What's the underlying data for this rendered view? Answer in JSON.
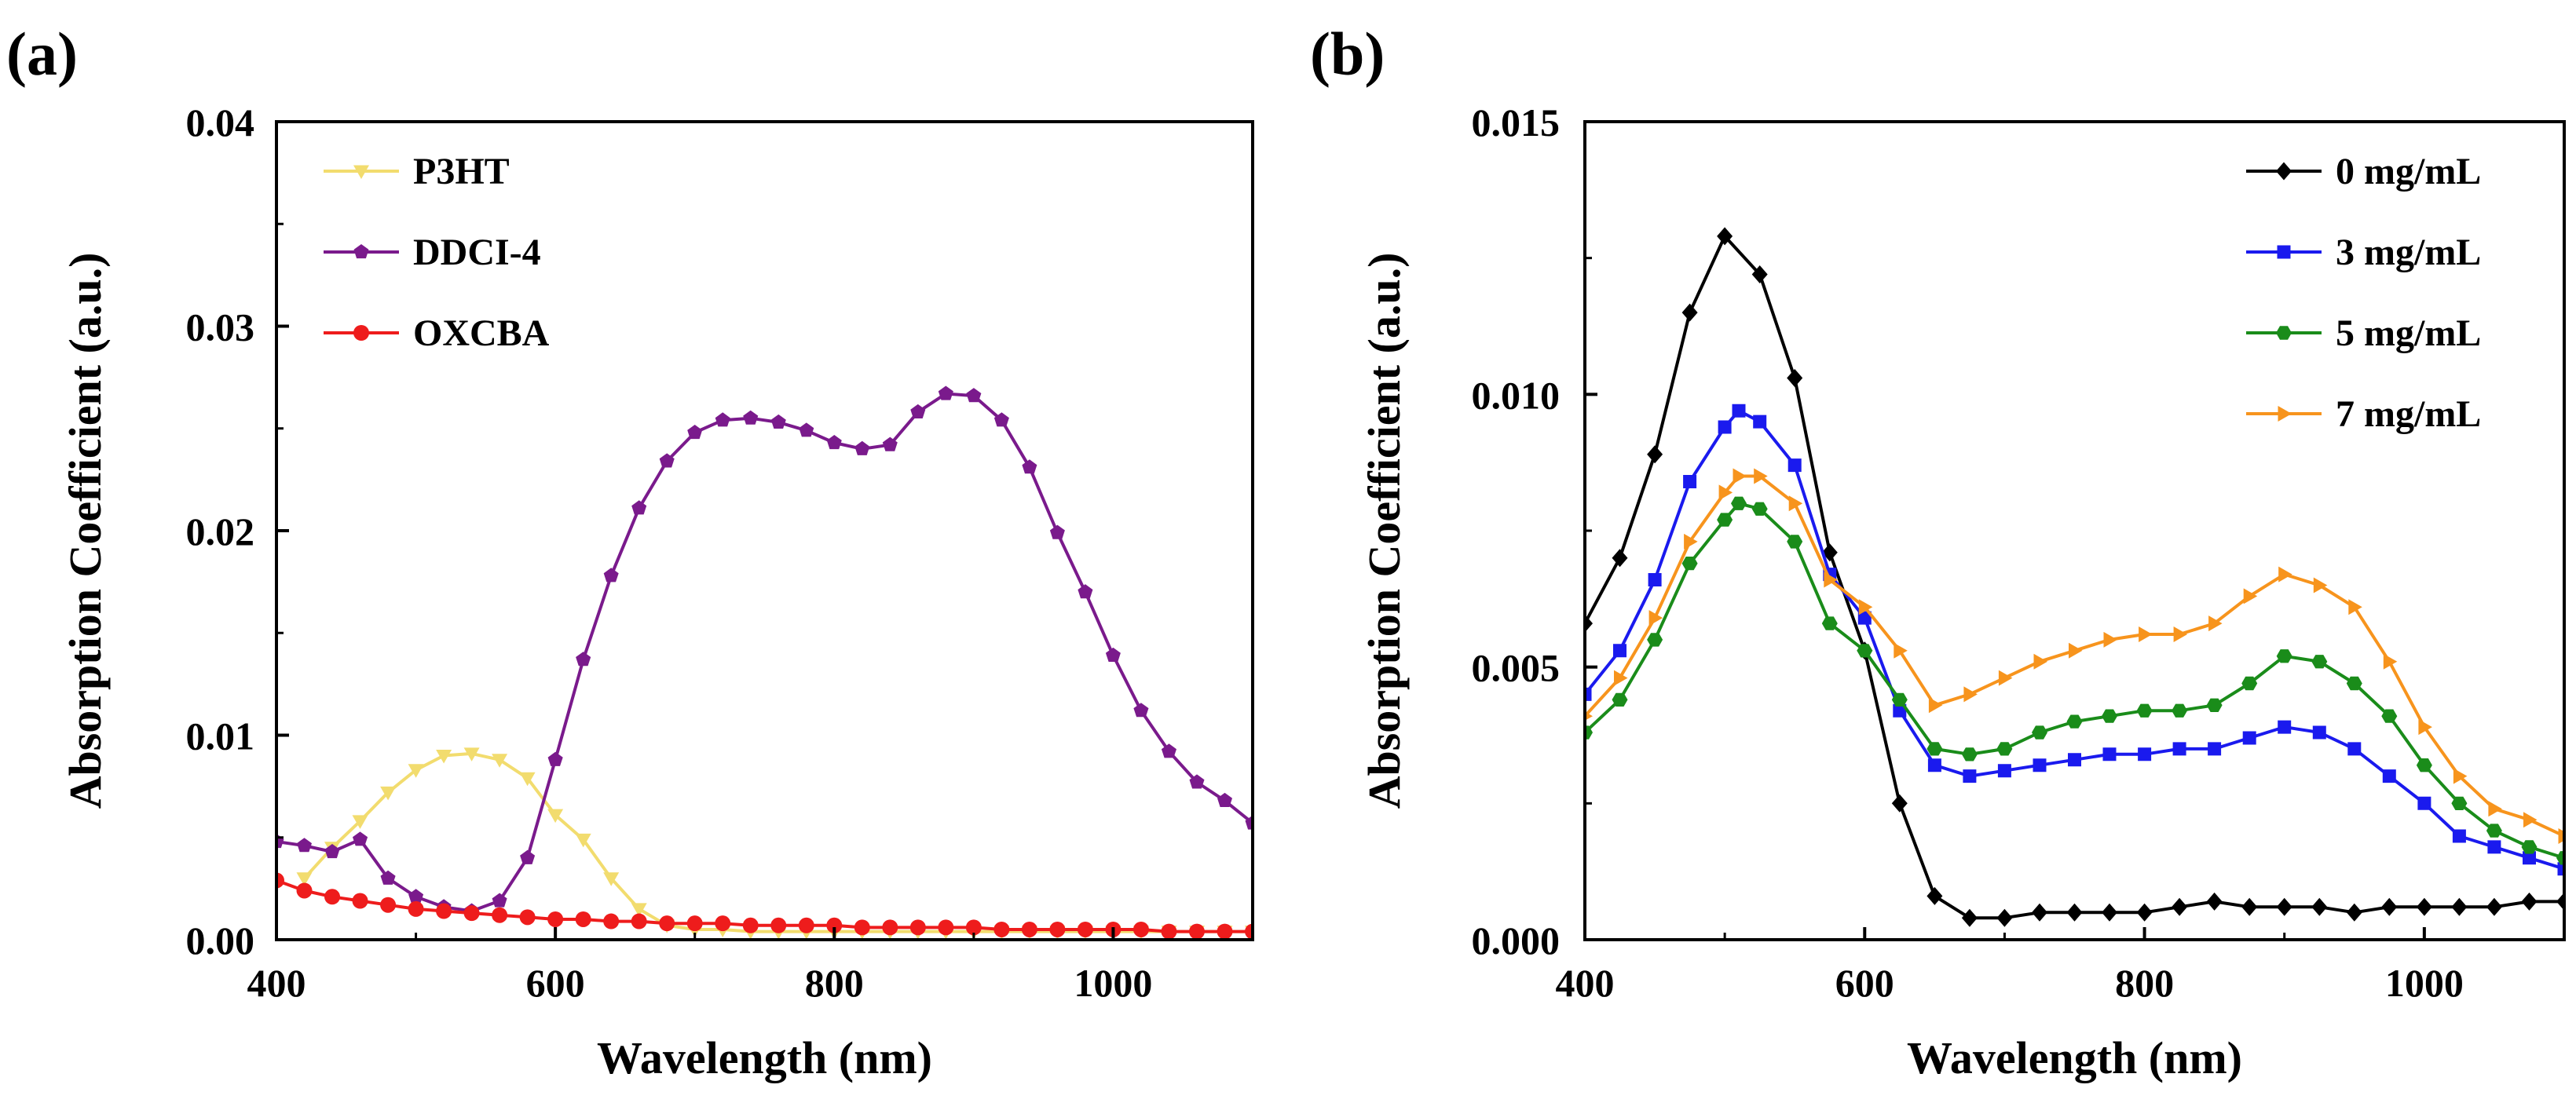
{
  "chart_data": [
    {
      "panel_label": "(a)",
      "type": "line",
      "xlabel": "Wavelength (nm)",
      "ylabel": "Absorption Coefficient (a.u.)",
      "xlim": [
        400,
        1100
      ],
      "ylim": [
        0,
        0.04
      ],
      "x_ticks": [
        400,
        600,
        800,
        1000
      ],
      "x_tick_labels": [
        "400",
        "600",
        "800",
        "1000"
      ],
      "y_ticks": [
        0,
        0.01,
        0.02,
        0.03,
        0.04
      ],
      "y_tick_labels": [
        "0.00",
        "0.01",
        "0.02",
        "0.03",
        "0.04"
      ],
      "legend_position": "top-left",
      "series": [
        {
          "name": "P3HT",
          "color": "#f2dc6e",
          "marker": "triangle-down",
          "x": [
            420,
            440,
            460,
            480,
            500,
            520,
            540,
            560,
            580,
            600,
            620,
            640,
            660,
            680,
            700,
            720,
            740,
            760,
            780,
            800,
            820,
            840,
            860,
            880,
            900,
            920,
            940,
            960,
            980,
            1000,
            1020,
            1040,
            1060,
            1080,
            1100
          ],
          "y": [
            0.003,
            0.0045,
            0.0058,
            0.0072,
            0.0083,
            0.009,
            0.0091,
            0.0088,
            0.0079,
            0.0061,
            0.0049,
            0.003,
            0.0015,
            0.0007,
            0.0005,
            0.0005,
            0.0004,
            0.0004,
            0.0004,
            0.0004,
            0.0004,
            0.0004,
            0.0004,
            0.0004,
            0.0004,
            0.0004,
            0.0004,
            0.0004,
            0.0004,
            0.0004,
            0.0004,
            0.0004,
            0.0004,
            0.0004,
            0.0004
          ]
        },
        {
          "name": "DDCI-4",
          "color": "#7a1a8c",
          "marker": "pentagon",
          "x": [
            400,
            420,
            440,
            460,
            480,
            500,
            520,
            540,
            560,
            580,
            600,
            620,
            640,
            660,
            680,
            700,
            720,
            740,
            760,
            780,
            800,
            820,
            840,
            860,
            880,
            900,
            920,
            940,
            960,
            980,
            1000,
            1020,
            1040,
            1060,
            1080,
            1100
          ],
          "y": [
            0.0048,
            0.0046,
            0.0043,
            0.0049,
            0.003,
            0.0021,
            0.0016,
            0.0014,
            0.0019,
            0.004,
            0.0088,
            0.0137,
            0.0178,
            0.0211,
            0.0234,
            0.0248,
            0.0254,
            0.0255,
            0.0253,
            0.0249,
            0.0243,
            0.024,
            0.0242,
            0.0258,
            0.0267,
            0.0266,
            0.0254,
            0.0231,
            0.0199,
            0.017,
            0.0139,
            0.0112,
            0.0092,
            0.0077,
            0.0068,
            0.0057
          ]
        },
        {
          "name": "OXCBA",
          "color": "#ee1c1c",
          "marker": "circle",
          "x": [
            400,
            420,
            440,
            460,
            480,
            500,
            520,
            540,
            560,
            580,
            600,
            620,
            640,
            660,
            680,
            700,
            720,
            740,
            760,
            780,
            800,
            820,
            840,
            860,
            880,
            900,
            920,
            940,
            960,
            980,
            1000,
            1020,
            1040,
            1060,
            1080,
            1100
          ],
          "y": [
            0.0029,
            0.0024,
            0.0021,
            0.0019,
            0.0017,
            0.0015,
            0.0014,
            0.0013,
            0.0012,
            0.0011,
            0.001,
            0.001,
            0.0009,
            0.0009,
            0.0008,
            0.0008,
            0.0008,
            0.0007,
            0.0007,
            0.0007,
            0.0007,
            0.0006,
            0.0006,
            0.0006,
            0.0006,
            0.0006,
            0.0005,
            0.0005,
            0.0005,
            0.0005,
            0.0005,
            0.0005,
            0.0004,
            0.0004,
            0.0004,
            0.0004
          ]
        }
      ]
    },
    {
      "panel_label": "(b)",
      "type": "line",
      "xlabel": "Wavelength (nm)",
      "ylabel": "Absorption Coefficient (a.u.)",
      "xlim": [
        400,
        1100
      ],
      "ylim": [
        0,
        0.015
      ],
      "x_ticks": [
        400,
        600,
        800,
        1000
      ],
      "x_tick_labels": [
        "400",
        "600",
        "800",
        "1000"
      ],
      "y_ticks": [
        0,
        0.005,
        0.01,
        0.015
      ],
      "y_tick_labels": [
        "0.000",
        "0.005",
        "0.010",
        "0.015"
      ],
      "legend_position": "top-right",
      "series": [
        {
          "name": "0 mg/mL",
          "color": "#000000",
          "marker": "diamond",
          "x": [
            400,
            425,
            450,
            475,
            500,
            525,
            550,
            575,
            600,
            625,
            650,
            675,
            700,
            725,
            750,
            775,
            800,
            825,
            850,
            875,
            900,
            925,
            950,
            975,
            1000,
            1025,
            1050,
            1075,
            1100
          ],
          "y": [
            0.0058,
            0.007,
            0.0089,
            0.0115,
            0.0129,
            0.0122,
            0.0103,
            0.0071,
            0.0053,
            0.0025,
            0.0008,
            0.0004,
            0.0004,
            0.0005,
            0.0005,
            0.0005,
            0.0005,
            0.0006,
            0.0007,
            0.0006,
            0.0006,
            0.0006,
            0.0005,
            0.0006,
            0.0006,
            0.0006,
            0.0006,
            0.0007,
            0.0007
          ]
        },
        {
          "name": "3 mg/mL",
          "color": "#1a1aee",
          "marker": "square",
          "x": [
            400,
            425,
            450,
            475,
            500,
            510,
            525,
            550,
            575,
            600,
            625,
            650,
            675,
            700,
            725,
            750,
            775,
            800,
            825,
            850,
            875,
            900,
            925,
            950,
            975,
            1000,
            1025,
            1050,
            1075,
            1100
          ],
          "y": [
            0.0045,
            0.0053,
            0.0066,
            0.0084,
            0.0094,
            0.0097,
            0.0095,
            0.0087,
            0.0067,
            0.0059,
            0.0042,
            0.0032,
            0.003,
            0.0031,
            0.0032,
            0.0033,
            0.0034,
            0.0034,
            0.0035,
            0.0035,
            0.0037,
            0.0039,
            0.0038,
            0.0035,
            0.003,
            0.0025,
            0.0019,
            0.0017,
            0.0015,
            0.0013
          ]
        },
        {
          "name": "5 mg/mL",
          "color": "#1a8c1a",
          "marker": "hexagon",
          "x": [
            400,
            425,
            450,
            475,
            500,
            510,
            525,
            550,
            575,
            600,
            625,
            650,
            675,
            700,
            725,
            750,
            775,
            800,
            825,
            850,
            875,
            900,
            925,
            950,
            975,
            1000,
            1025,
            1050,
            1075,
            1100
          ],
          "y": [
            0.0038,
            0.0044,
            0.0055,
            0.0069,
            0.0077,
            0.008,
            0.0079,
            0.0073,
            0.0058,
            0.0053,
            0.0044,
            0.0035,
            0.0034,
            0.0035,
            0.0038,
            0.004,
            0.0041,
            0.0042,
            0.0042,
            0.0043,
            0.0047,
            0.0052,
            0.0051,
            0.0047,
            0.0041,
            0.0032,
            0.0025,
            0.002,
            0.0017,
            0.0015
          ]
        },
        {
          "name": "7 mg/mL",
          "color": "#f7941d",
          "marker": "triangle-right",
          "x": [
            400,
            425,
            450,
            475,
            500,
            510,
            525,
            550,
            575,
            600,
            625,
            650,
            675,
            700,
            725,
            750,
            775,
            800,
            825,
            850,
            875,
            900,
            925,
            950,
            975,
            1000,
            1025,
            1050,
            1075,
            1100
          ],
          "y": [
            0.0041,
            0.0048,
            0.0059,
            0.0073,
            0.0082,
            0.0085,
            0.0085,
            0.008,
            0.0066,
            0.0061,
            0.0053,
            0.0043,
            0.0045,
            0.0048,
            0.0051,
            0.0053,
            0.0055,
            0.0056,
            0.0056,
            0.0058,
            0.0063,
            0.0067,
            0.0065,
            0.0061,
            0.0051,
            0.0039,
            0.003,
            0.0024,
            0.0022,
            0.0019
          ]
        }
      ]
    }
  ]
}
